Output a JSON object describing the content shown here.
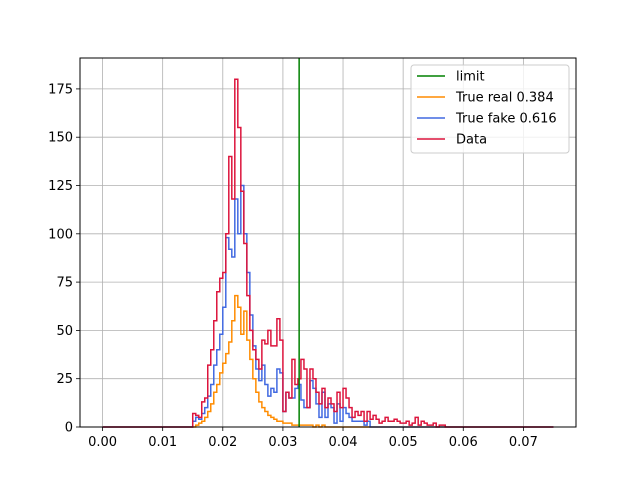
{
  "chart_data": {
    "type": "histogram",
    "title": "",
    "xlabel": "",
    "ylabel": "",
    "xlim": [
      -0.00375,
      0.07875
    ],
    "ylim": [
      0,
      191
    ],
    "grid": true,
    "legend_position": "top-right",
    "x_ticks": [
      0.0,
      0.01,
      0.02,
      0.03,
      0.04,
      0.05,
      0.06,
      0.07
    ],
    "x_tick_labels": [
      "0.00",
      "0.01",
      "0.02",
      "0.03",
      "0.04",
      "0.05",
      "0.06",
      "0.07"
    ],
    "y_ticks": [
      0,
      25,
      50,
      75,
      100,
      125,
      150,
      175
    ],
    "y_tick_labels": [
      "0",
      "25",
      "50",
      "75",
      "100",
      "125",
      "150",
      "175"
    ],
    "bin_edges_x": [
      0.0,
      0.075
    ],
    "bin_count": 150,
    "limit": {
      "name": "limit",
      "x": 0.0327,
      "color": "#008000"
    },
    "series": [
      {
        "name": "True real 0.384",
        "color": "#ff8c00",
        "start_bin": 30,
        "values": [
          0,
          1,
          2,
          3,
          5,
          8,
          12,
          18,
          22,
          28,
          33,
          38,
          44,
          55,
          68,
          62,
          48,
          60,
          45,
          35,
          25,
          18,
          13,
          10,
          8,
          6,
          5,
          4,
          3,
          3,
          2,
          2,
          2,
          1,
          1,
          1,
          1,
          1,
          1,
          1,
          0,
          1,
          0,
          1,
          0,
          0,
          0,
          0,
          0,
          0,
          0,
          0,
          0,
          0,
          0,
          0,
          0,
          0,
          0,
          0
        ]
      },
      {
        "name": "True fake 0.616",
        "color": "#4169e1",
        "start_bin": 30,
        "values": [
          3,
          5,
          4,
          7,
          10,
          16,
          22,
          32,
          40,
          48,
          62,
          98,
          92,
          88,
          118,
          100,
          125,
          100,
          80,
          58,
          42,
          30,
          24,
          32,
          22,
          16,
          20,
          18,
          30,
          28,
          8,
          18,
          15,
          15,
          20,
          22,
          14,
          10,
          10,
          24,
          20,
          12,
          5,
          18,
          5,
          12,
          10,
          2,
          12,
          3,
          10,
          7,
          5,
          3,
          3,
          3,
          3,
          1,
          3,
          0
        ]
      },
      {
        "name": "Data",
        "color": "#dc143c",
        "start_bin": 30,
        "values": [
          7,
          6,
          5,
          13,
          15,
          32,
          40,
          55,
          70,
          77,
          80,
          100,
          140,
          118,
          180,
          155,
          122,
          95,
          68,
          50,
          40,
          35,
          30,
          45,
          43,
          50,
          42,
          42,
          56,
          45,
          8,
          18,
          15,
          35,
          22,
          25,
          35,
          30,
          10,
          30,
          25,
          18,
          12,
          20,
          10,
          15,
          12,
          8,
          18,
          10,
          20,
          15,
          10,
          5,
          8,
          6,
          8,
          3,
          8,
          4,
          6,
          4,
          2,
          3,
          5,
          3,
          3,
          4,
          3,
          2,
          2,
          3,
          1,
          2,
          5,
          1,
          3,
          2,
          1,
          1,
          2,
          0,
          1,
          1,
          0,
          0,
          0,
          0,
          0,
          0
        ]
      }
    ]
  }
}
